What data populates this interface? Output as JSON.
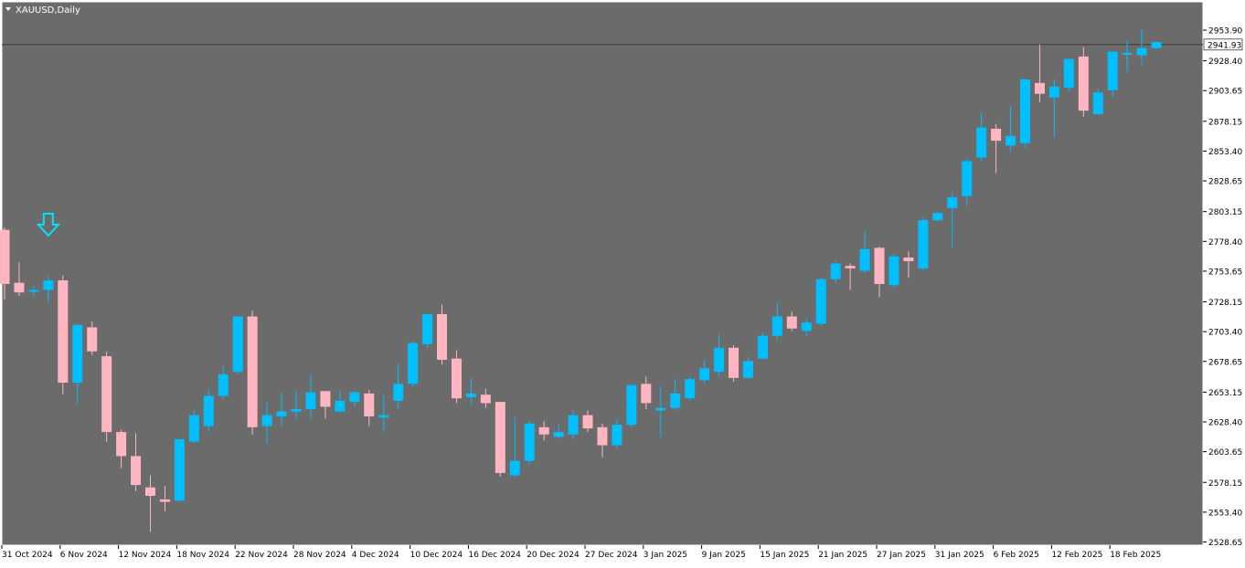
{
  "window": {
    "title": "XAUUSD,Daily"
  },
  "colors": {
    "background": "#6b6b6b",
    "bull": "#00bfff",
    "bear": "#ffb6c1",
    "axis_text": "#000000",
    "price_line": "#3a3a3a",
    "arrow": "#00e5ff"
  },
  "chart_data": {
    "type": "candlestick",
    "symbol": "XAUUSD",
    "timeframe": "Daily",
    "current_price": "2941.93",
    "y_ticks": [
      "2953.90",
      "2928.40",
      "2903.65",
      "2878.15",
      "2853.40",
      "2828.65",
      "2803.15",
      "2778.40",
      "2753.65",
      "2728.15",
      "2703.40",
      "2678.65",
      "2653.15",
      "2628.40",
      "2603.65",
      "2578.15",
      "2553.40",
      "2528.65"
    ],
    "ylim": [
      2528.65,
      2953.9
    ],
    "x_ticks": [
      {
        "label": "31 Oct 2024",
        "index": 0
      },
      {
        "label": "6 Nov 2024",
        "index": 4
      },
      {
        "label": "12 Nov 2024",
        "index": 8
      },
      {
        "label": "18 Nov 2024",
        "index": 12
      },
      {
        "label": "22 Nov 2024",
        "index": 16
      },
      {
        "label": "28 Nov 2024",
        "index": 20
      },
      {
        "label": "4 Dec 2024",
        "index": 24
      },
      {
        "label": "10 Dec 2024",
        "index": 28
      },
      {
        "label": "16 Dec 2024",
        "index": 32
      },
      {
        "label": "20 Dec 2024",
        "index": 36
      },
      {
        "label": "27 Dec 2024",
        "index": 40
      },
      {
        "label": "3 Jan 2025",
        "index": 44
      },
      {
        "label": "9 Jan 2025",
        "index": 48
      },
      {
        "label": "15 Jan 2025",
        "index": 52
      },
      {
        "label": "21 Jan 2025",
        "index": 56
      },
      {
        "label": "27 Jan 2025",
        "index": 60
      },
      {
        "label": "31 Jan 2025",
        "index": 64
      },
      {
        "label": "6 Feb 2025",
        "index": 68
      },
      {
        "label": "12 Feb 2025",
        "index": 72
      },
      {
        "label": "18 Feb 2025",
        "index": 76
      }
    ],
    "candles": [
      {
        "o": 2788,
        "h": 2790,
        "l": 2730,
        "c": 2743
      },
      {
        "o": 2744,
        "h": 2761,
        "l": 2733,
        "c": 2736
      },
      {
        "o": 2737,
        "h": 2742,
        "l": 2733,
        "c": 2738
      },
      {
        "o": 2738,
        "h": 2750,
        "l": 2728,
        "c": 2746
      },
      {
        "o": 2746,
        "h": 2750,
        "l": 2651,
        "c": 2661
      },
      {
        "o": 2661,
        "h": 2710,
        "l": 2644,
        "c": 2709
      },
      {
        "o": 2707,
        "h": 2712,
        "l": 2684,
        "c": 2687
      },
      {
        "o": 2683,
        "h": 2687,
        "l": 2612,
        "c": 2620
      },
      {
        "o": 2620,
        "h": 2622,
        "l": 2590,
        "c": 2600
      },
      {
        "o": 2600,
        "h": 2619,
        "l": 2571,
        "c": 2576
      },
      {
        "o": 2574,
        "h": 2584,
        "l": 2537,
        "c": 2567
      },
      {
        "o": 2564,
        "h": 2575,
        "l": 2554,
        "c": 2562
      },
      {
        "o": 2563,
        "h": 2614,
        "l": 2562,
        "c": 2614
      },
      {
        "o": 2612,
        "h": 2638,
        "l": 2611,
        "c": 2634
      },
      {
        "o": 2625,
        "h": 2655,
        "l": 2620,
        "c": 2650
      },
      {
        "o": 2650,
        "h": 2675,
        "l": 2648,
        "c": 2668
      },
      {
        "o": 2670,
        "h": 2716,
        "l": 2668,
        "c": 2716
      },
      {
        "o": 2716,
        "h": 2721,
        "l": 2618,
        "c": 2624
      },
      {
        "o": 2625,
        "h": 2645,
        "l": 2610,
        "c": 2634
      },
      {
        "o": 2633,
        "h": 2653,
        "l": 2625,
        "c": 2637
      },
      {
        "o": 2637,
        "h": 2654,
        "l": 2631,
        "c": 2639
      },
      {
        "o": 2639,
        "h": 2667,
        "l": 2631,
        "c": 2653
      },
      {
        "o": 2654,
        "h": 2654,
        "l": 2631,
        "c": 2641
      },
      {
        "o": 2637,
        "h": 2654,
        "l": 2636,
        "c": 2646
      },
      {
        "o": 2645,
        "h": 2654,
        "l": 2641,
        "c": 2653
      },
      {
        "o": 2652,
        "h": 2655,
        "l": 2625,
        "c": 2633
      },
      {
        "o": 2632,
        "h": 2651,
        "l": 2620,
        "c": 2634
      },
      {
        "o": 2646,
        "h": 2677,
        "l": 2639,
        "c": 2660
      },
      {
        "o": 2660,
        "h": 2695,
        "l": 2658,
        "c": 2694
      },
      {
        "o": 2693,
        "h": 2718,
        "l": 2690,
        "c": 2718
      },
      {
        "o": 2718,
        "h": 2726,
        "l": 2676,
        "c": 2680
      },
      {
        "o": 2681,
        "h": 2688,
        "l": 2644,
        "c": 2648
      },
      {
        "o": 2649,
        "h": 2665,
        "l": 2643,
        "c": 2652
      },
      {
        "o": 2651,
        "h": 2656,
        "l": 2640,
        "c": 2644
      },
      {
        "o": 2645,
        "h": 2645,
        "l": 2583,
        "c": 2586
      },
      {
        "o": 2584,
        "h": 2632,
        "l": 2582,
        "c": 2596
      },
      {
        "o": 2596,
        "h": 2629,
        "l": 2593,
        "c": 2627
      },
      {
        "o": 2624,
        "h": 2629,
        "l": 2613,
        "c": 2618
      },
      {
        "o": 2616,
        "h": 2626,
        "l": 2614,
        "c": 2620
      },
      {
        "o": 2618,
        "h": 2638,
        "l": 2614,
        "c": 2634
      },
      {
        "o": 2634,
        "h": 2638,
        "l": 2620,
        "c": 2623
      },
      {
        "o": 2624,
        "h": 2627,
        "l": 2599,
        "c": 2609
      },
      {
        "o": 2609,
        "h": 2630,
        "l": 2606,
        "c": 2626
      },
      {
        "o": 2626,
        "h": 2660,
        "l": 2624,
        "c": 2659
      },
      {
        "o": 2660,
        "h": 2666,
        "l": 2639,
        "c": 2644
      },
      {
        "o": 2638,
        "h": 2658,
        "l": 2616,
        "c": 2640
      },
      {
        "o": 2640,
        "h": 2664,
        "l": 2638,
        "c": 2652
      },
      {
        "o": 2648,
        "h": 2666,
        "l": 2646,
        "c": 2664
      },
      {
        "o": 2663,
        "h": 2680,
        "l": 2660,
        "c": 2673
      },
      {
        "o": 2670,
        "h": 2701,
        "l": 2666,
        "c": 2690
      },
      {
        "o": 2690,
        "h": 2692,
        "l": 2662,
        "c": 2665
      },
      {
        "o": 2665,
        "h": 2682,
        "l": 2664,
        "c": 2679
      },
      {
        "o": 2681,
        "h": 2703,
        "l": 2680,
        "c": 2700
      },
      {
        "o": 2700,
        "h": 2727,
        "l": 2697,
        "c": 2716
      },
      {
        "o": 2716,
        "h": 2720,
        "l": 2704,
        "c": 2706
      },
      {
        "o": 2704,
        "h": 2714,
        "l": 2700,
        "c": 2711
      },
      {
        "o": 2710,
        "h": 2748,
        "l": 2708,
        "c": 2747
      },
      {
        "o": 2747,
        "h": 2762,
        "l": 2744,
        "c": 2760
      },
      {
        "o": 2758,
        "h": 2760,
        "l": 2738,
        "c": 2756
      },
      {
        "o": 2754,
        "h": 2787,
        "l": 2752,
        "c": 2772
      },
      {
        "o": 2773,
        "h": 2774,
        "l": 2732,
        "c": 2743
      },
      {
        "o": 2742,
        "h": 2768,
        "l": 2740,
        "c": 2766
      },
      {
        "o": 2765,
        "h": 2770,
        "l": 2748,
        "c": 2762
      },
      {
        "o": 2756,
        "h": 2798,
        "l": 2754,
        "c": 2796
      },
      {
        "o": 2796,
        "h": 2803,
        "l": 2795,
        "c": 2802
      },
      {
        "o": 2806,
        "h": 2819,
        "l": 2773,
        "c": 2815
      },
      {
        "o": 2816,
        "h": 2848,
        "l": 2808,
        "c": 2845
      },
      {
        "o": 2848,
        "h": 2885,
        "l": 2845,
        "c": 2873
      },
      {
        "o": 2872,
        "h": 2876,
        "l": 2835,
        "c": 2862
      },
      {
        "o": 2858,
        "h": 2891,
        "l": 2853,
        "c": 2866
      },
      {
        "o": 2860,
        "h": 2913,
        "l": 2856,
        "c": 2913
      },
      {
        "o": 2910,
        "h": 2942,
        "l": 2894,
        "c": 2901
      },
      {
        "o": 2898,
        "h": 2913,
        "l": 2865,
        "c": 2907
      },
      {
        "o": 2906,
        "h": 2930,
        "l": 2903,
        "c": 2930
      },
      {
        "o": 2932,
        "h": 2940,
        "l": 2882,
        "c": 2887
      },
      {
        "o": 2884,
        "h": 2905,
        "l": 2884,
        "c": 2902
      },
      {
        "o": 2904,
        "h": 2936,
        "l": 2898,
        "c": 2936
      },
      {
        "o": 2935,
        "h": 2945,
        "l": 2919,
        "c": 2935
      },
      {
        "o": 2933,
        "h": 2955,
        "l": 2925,
        "c": 2939
      },
      {
        "o": 2939,
        "h": 2944,
        "l": 2938,
        "c": 2944
      }
    ],
    "grid": false,
    "signal_arrow": {
      "direction": "down",
      "index": 3
    }
  }
}
